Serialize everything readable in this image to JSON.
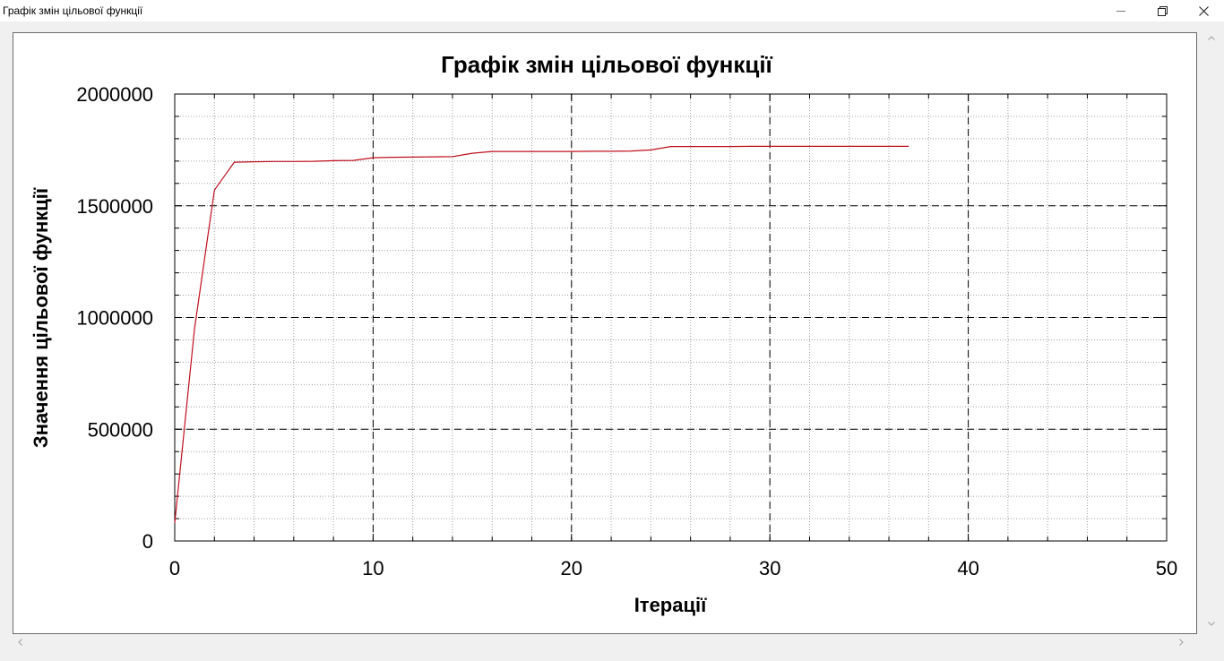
{
  "window": {
    "title": "Графік змін цільової функції",
    "controls": {
      "minimize_icon": "minimize-icon",
      "maximize_icon": "restore-icon",
      "close_icon": "close-icon"
    }
  },
  "chart_data": {
    "type": "line",
    "title": "Графік змін цільової функції",
    "xlabel": "Ітерації",
    "ylabel": "Значення цільової функції",
    "xlim": [
      0,
      50
    ],
    "ylim": [
      0,
      2000000
    ],
    "x_ticks": [
      0,
      10,
      20,
      30,
      40,
      50
    ],
    "y_ticks": [
      0,
      500000,
      1000000,
      1500000,
      2000000
    ],
    "x_tick_labels": [
      "0",
      "10",
      "20",
      "30",
      "40",
      "50"
    ],
    "y_tick_labels": [
      "0",
      "500000",
      "1000000",
      "1500000",
      "2000000"
    ],
    "grid": true,
    "legend": "none",
    "line_color": "#c0101e",
    "series": [
      {
        "x": [
          0,
          1,
          2,
          3,
          4,
          5,
          6,
          7,
          8,
          9,
          10,
          11,
          12,
          13,
          14,
          15,
          16,
          17,
          18,
          19,
          20,
          21,
          22,
          23,
          24,
          25,
          26,
          27,
          28,
          29,
          30,
          31,
          32,
          33,
          34,
          35,
          36,
          37
        ],
        "values": [
          80000,
          950000,
          1570000,
          1695000,
          1697000,
          1698000,
          1698000,
          1699000,
          1702000,
          1703000,
          1715000,
          1717000,
          1718000,
          1719000,
          1720000,
          1735000,
          1743000,
          1743000,
          1743000,
          1743000,
          1743000,
          1744000,
          1744000,
          1745000,
          1750000,
          1765000,
          1765000,
          1765000,
          1765000,
          1766000,
          1766000,
          1766000,
          1766000,
          1766000,
          1766000,
          1766000,
          1766000,
          1766000
        ]
      }
    ]
  }
}
